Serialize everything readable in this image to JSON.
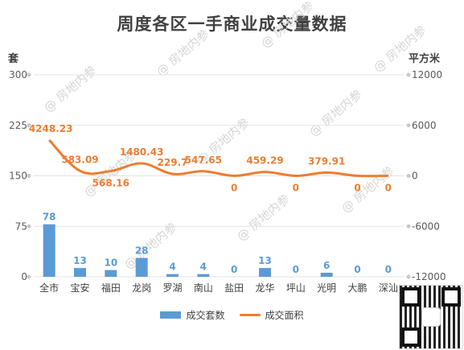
{
  "chart_data": {
    "type": "bar+line",
    "title": "周度各区一手商业成交量数据",
    "categories": [
      "全市",
      "宝安",
      "福田",
      "龙岗",
      "罗湖",
      "南山",
      "盐田",
      "龙华",
      "坪山",
      "光明",
      "大鹏",
      "深汕"
    ],
    "left_axis": {
      "unit": "套",
      "ticks": [
        0,
        75,
        150,
        225,
        300
      ],
      "range": [
        0,
        300
      ]
    },
    "right_axis": {
      "unit": "平方米",
      "ticks": [
        -12000,
        -6000,
        0,
        6000,
        12000
      ],
      "range": [
        -12000,
        12000
      ]
    },
    "series": [
      {
        "name": "成交套数",
        "kind": "bar",
        "axis": "left",
        "color": "#5B9BD5",
        "values": [
          78,
          13,
          10,
          28,
          4,
          4,
          0,
          13,
          0,
          6,
          0,
          0
        ],
        "labels": [
          "78",
          "13",
          "10",
          "28",
          "4",
          "4",
          "0",
          "13",
          "0",
          "6",
          "0",
          "0"
        ]
      },
      {
        "name": "成交面积",
        "kind": "line",
        "axis": "right",
        "color": "#ED7D31",
        "values": [
          4248.23,
          583.09,
          568.16,
          1480.43,
          229.7,
          547.65,
          0,
          459.29,
          0,
          379.91,
          0,
          0
        ],
        "labels": [
          "4248.23",
          "583.09",
          "568.16",
          "1480.43",
          "229.7",
          "547.65",
          "0",
          "459.29",
          "0",
          "379.91",
          "0",
          "0"
        ]
      }
    ],
    "grid": true,
    "legend": "bottom"
  },
  "watermark": "房地内参"
}
